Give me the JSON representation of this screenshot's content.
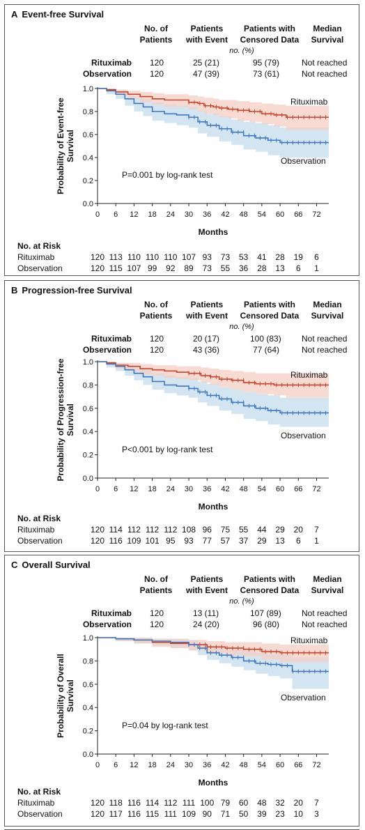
{
  "table_headers": {
    "n_patients": "No. of Patients",
    "with_event": "Patients with Event",
    "censored": "Patients with Censored Data",
    "median": "Median Survival",
    "unit": "no. (%)"
  },
  "risk": {
    "title": "No. at Risk"
  },
  "colors": {
    "rituximab": "#c8432b",
    "observation": "#3f77bd",
    "rituximab_band": "#f4cfc4",
    "observation_band": "#c4dcec"
  },
  "panels": [
    {
      "letter": "A",
      "title": "Event-free Survival",
      "rows": [
        {
          "group": "Rituximab",
          "n": "120",
          "event": "25 (21)",
          "censored": "95 (79)",
          "median": "Not reached"
        },
        {
          "group": "Observation",
          "n": "120",
          "event": "47 (39)",
          "censored": "73 (61)",
          "median": "Not reached"
        }
      ],
      "pvalue": "P=0.001 by log-rank test",
      "risk": {
        "rituximab": {
          "label": "Rituximab",
          "values": [
            "120",
            "113",
            "110",
            "110",
            "110",
            "107",
            "93",
            "73",
            "53",
            "41",
            "28",
            "19",
            "6"
          ]
        },
        "observation": {
          "label": "Observation",
          "values": [
            "120",
            "115",
            "107",
            "99",
            "92",
            "89",
            "73",
            "55",
            "36",
            "28",
            "13",
            "6",
            "1"
          ]
        }
      }
    },
    {
      "letter": "B",
      "title": "Progression-free Survival",
      "rows": [
        {
          "group": "Rituximab",
          "n": "120",
          "event": "20 (17)",
          "censored": "100 (83)",
          "median": "Not reached"
        },
        {
          "group": "Observation",
          "n": "120",
          "event": "43 (36)",
          "censored": "77 (64)",
          "median": "Not reached"
        }
      ],
      "pvalue": "P<0.001 by log-rank test",
      "risk": {
        "rituximab": {
          "label": "Rituximab",
          "values": [
            "120",
            "114",
            "112",
            "112",
            "112",
            "108",
            "96",
            "75",
            "55",
            "44",
            "29",
            "20",
            "7"
          ]
        },
        "observation": {
          "label": "Observation",
          "values": [
            "120",
            "116",
            "109",
            "101",
            "95",
            "93",
            "77",
            "57",
            "37",
            "29",
            "13",
            "6",
            "1"
          ]
        }
      }
    },
    {
      "letter": "C",
      "title": "Overall Survival",
      "rows": [
        {
          "group": "Rituximab",
          "n": "120",
          "event": "13 (11)",
          "censored": "107 (89)",
          "median": "Not reached"
        },
        {
          "group": "Observation",
          "n": "120",
          "event": "24 (20)",
          "censored": "96 (80)",
          "median": "Not reached"
        }
      ],
      "pvalue": "P=0.04 by log-rank test",
      "risk": {
        "rituximab": {
          "label": "Rituximab",
          "values": [
            "120",
            "118",
            "116",
            "114",
            "112",
            "111",
            "100",
            "79",
            "60",
            "48",
            "32",
            "20",
            "7"
          ]
        },
        "observation": {
          "label": "Observation",
          "values": [
            "120",
            "117",
            "116",
            "115",
            "111",
            "109",
            "90",
            "71",
            "50",
            "39",
            "23",
            "10",
            "3"
          ]
        }
      }
    }
  ],
  "chart_data": [
    {
      "type": "line",
      "subtype": "kaplan-meier",
      "title": "Event-free Survival",
      "xlabel": "Months",
      "ylabel": "Probability of Event-free Survival",
      "xlim": [
        0,
        76
      ],
      "ylim": [
        0,
        1.0
      ],
      "xticks": [
        0,
        6,
        12,
        18,
        24,
        30,
        36,
        42,
        48,
        54,
        60,
        66,
        72
      ],
      "yticks": [
        "0.0",
        "0.2",
        "0.4",
        "0.6",
        "0.8",
        "1.0"
      ],
      "series": [
        {
          "name": "Rituximab",
          "x": [
            0,
            3,
            6,
            10,
            14,
            18,
            22,
            26,
            30,
            33,
            35,
            38,
            40,
            43,
            46,
            50,
            54,
            58,
            62,
            76
          ],
          "y": [
            1.0,
            0.99,
            0.97,
            0.95,
            0.93,
            0.91,
            0.9,
            0.9,
            0.88,
            0.87,
            0.85,
            0.84,
            0.83,
            0.82,
            0.81,
            0.8,
            0.78,
            0.77,
            0.75,
            0.75
          ],
          "band_lo": [
            1.0,
            0.97,
            0.94,
            0.91,
            0.88,
            0.86,
            0.84,
            0.84,
            0.82,
            0.8,
            0.78,
            0.77,
            0.75,
            0.74,
            0.72,
            0.71,
            0.69,
            0.67,
            0.64,
            0.63
          ],
          "band_hi": [
            1.0,
            1.0,
            0.99,
            0.98,
            0.97,
            0.96,
            0.95,
            0.95,
            0.94,
            0.93,
            0.92,
            0.91,
            0.9,
            0.9,
            0.89,
            0.88,
            0.87,
            0.86,
            0.85,
            0.85
          ]
        },
        {
          "name": "Observation",
          "x": [
            0,
            3,
            6,
            9,
            12,
            15,
            18,
            22,
            26,
            30,
            33,
            36,
            40,
            44,
            48,
            52,
            56,
            60,
            76
          ],
          "y": [
            1.0,
            0.98,
            0.95,
            0.91,
            0.87,
            0.84,
            0.8,
            0.78,
            0.77,
            0.75,
            0.71,
            0.68,
            0.65,
            0.62,
            0.59,
            0.57,
            0.55,
            0.53,
            0.53
          ],
          "band_lo": [
            1.0,
            0.95,
            0.91,
            0.85,
            0.8,
            0.76,
            0.72,
            0.7,
            0.68,
            0.66,
            0.61,
            0.58,
            0.54,
            0.51,
            0.47,
            0.45,
            0.42,
            0.4,
            0.38
          ],
          "band_hi": [
            1.0,
            1.0,
            0.99,
            0.96,
            0.93,
            0.91,
            0.88,
            0.86,
            0.85,
            0.84,
            0.81,
            0.78,
            0.76,
            0.73,
            0.71,
            0.7,
            0.68,
            0.66,
            0.66
          ]
        }
      ],
      "labels": [
        "Rituximab",
        "Observation"
      ],
      "annotation": "P=0.001 by log-rank test"
    },
    {
      "type": "line",
      "subtype": "kaplan-meier",
      "title": "Progression-free Survival",
      "xlabel": "Months",
      "ylabel": "Probability of Progression-free Survival",
      "xlim": [
        0,
        76
      ],
      "ylim": [
        0,
        1.0
      ],
      "xticks": [
        0,
        6,
        12,
        18,
        24,
        30,
        36,
        42,
        48,
        54,
        60,
        66,
        72
      ],
      "yticks": [
        "0.0",
        "0.2",
        "0.4",
        "0.6",
        "0.8",
        "1.0"
      ],
      "series": [
        {
          "name": "Rituximab",
          "x": [
            0,
            3,
            6,
            10,
            14,
            18,
            22,
            26,
            30,
            34,
            37,
            40,
            44,
            48,
            52,
            58,
            62,
            76
          ],
          "y": [
            1.0,
            0.99,
            0.97,
            0.96,
            0.94,
            0.93,
            0.92,
            0.91,
            0.9,
            0.88,
            0.87,
            0.85,
            0.84,
            0.82,
            0.81,
            0.8,
            0.8,
            0.8
          ],
          "band_lo": [
            1.0,
            0.97,
            0.94,
            0.92,
            0.89,
            0.88,
            0.86,
            0.85,
            0.84,
            0.82,
            0.8,
            0.78,
            0.76,
            0.74,
            0.72,
            0.71,
            0.69,
            0.68
          ],
          "band_hi": [
            1.0,
            1.0,
            0.99,
            0.99,
            0.98,
            0.97,
            0.97,
            0.96,
            0.96,
            0.95,
            0.94,
            0.93,
            0.92,
            0.91,
            0.9,
            0.9,
            0.9,
            0.9
          ]
        },
        {
          "name": "Observation",
          "x": [
            0,
            3,
            6,
            9,
            12,
            15,
            18,
            22,
            26,
            30,
            33,
            36,
            40,
            44,
            48,
            52,
            56,
            60,
            76
          ],
          "y": [
            1.0,
            0.98,
            0.96,
            0.93,
            0.9,
            0.87,
            0.83,
            0.8,
            0.79,
            0.77,
            0.74,
            0.71,
            0.68,
            0.65,
            0.62,
            0.6,
            0.58,
            0.56,
            0.56
          ],
          "band_lo": [
            1.0,
            0.95,
            0.92,
            0.88,
            0.84,
            0.8,
            0.76,
            0.73,
            0.71,
            0.69,
            0.65,
            0.62,
            0.58,
            0.55,
            0.51,
            0.49,
            0.46,
            0.44,
            0.43
          ],
          "band_hi": [
            1.0,
            1.0,
            0.99,
            0.97,
            0.95,
            0.93,
            0.9,
            0.88,
            0.87,
            0.86,
            0.83,
            0.81,
            0.78,
            0.76,
            0.74,
            0.72,
            0.71,
            0.69,
            0.69
          ]
        }
      ],
      "labels": [
        "Rituximab",
        "Observation"
      ],
      "annotation": "P<0.001 by log-rank test"
    },
    {
      "type": "line",
      "subtype": "kaplan-meier",
      "title": "Overall Survival",
      "xlabel": "Months",
      "ylabel": "Probability of Overall Survival",
      "xlim": [
        0,
        76
      ],
      "ylim": [
        0,
        1.0
      ],
      "xticks": [
        0,
        6,
        12,
        18,
        24,
        30,
        36,
        42,
        48,
        54,
        60,
        66,
        72
      ],
      "yticks": [
        "0.0",
        "0.2",
        "0.4",
        "0.6",
        "0.8",
        "1.0"
      ],
      "series": [
        {
          "name": "Rituximab",
          "x": [
            0,
            6,
            12,
            18,
            24,
            30,
            36,
            42,
            48,
            54,
            60,
            66,
            76
          ],
          "y": [
            1.0,
            0.99,
            0.98,
            0.96,
            0.95,
            0.94,
            0.92,
            0.91,
            0.9,
            0.88,
            0.87,
            0.87,
            0.87
          ],
          "band_lo": [
            1.0,
            0.97,
            0.95,
            0.92,
            0.91,
            0.89,
            0.87,
            0.85,
            0.84,
            0.81,
            0.79,
            0.79,
            0.78
          ],
          "band_hi": [
            1.0,
            1.0,
            1.0,
            0.99,
            0.99,
            0.98,
            0.97,
            0.96,
            0.96,
            0.95,
            0.94,
            0.94,
            0.94
          ]
        },
        {
          "name": "Observation",
          "x": [
            0,
            6,
            12,
            18,
            24,
            30,
            33,
            36,
            40,
            44,
            48,
            52,
            56,
            60,
            64,
            76
          ],
          "y": [
            1.0,
            0.99,
            0.98,
            0.97,
            0.96,
            0.94,
            0.91,
            0.87,
            0.85,
            0.83,
            0.8,
            0.78,
            0.77,
            0.76,
            0.71,
            0.71
          ],
          "band_lo": [
            1.0,
            0.97,
            0.95,
            0.93,
            0.91,
            0.89,
            0.85,
            0.81,
            0.78,
            0.75,
            0.72,
            0.69,
            0.67,
            0.65,
            0.56,
            0.55
          ],
          "band_hi": [
            1.0,
            1.0,
            1.0,
            0.99,
            0.99,
            0.98,
            0.96,
            0.93,
            0.91,
            0.9,
            0.88,
            0.87,
            0.86,
            0.86,
            0.83,
            0.83
          ]
        }
      ],
      "labels": [
        "Rituximab",
        "Observation"
      ],
      "annotation": "P=0.04 by log-rank test"
    }
  ]
}
